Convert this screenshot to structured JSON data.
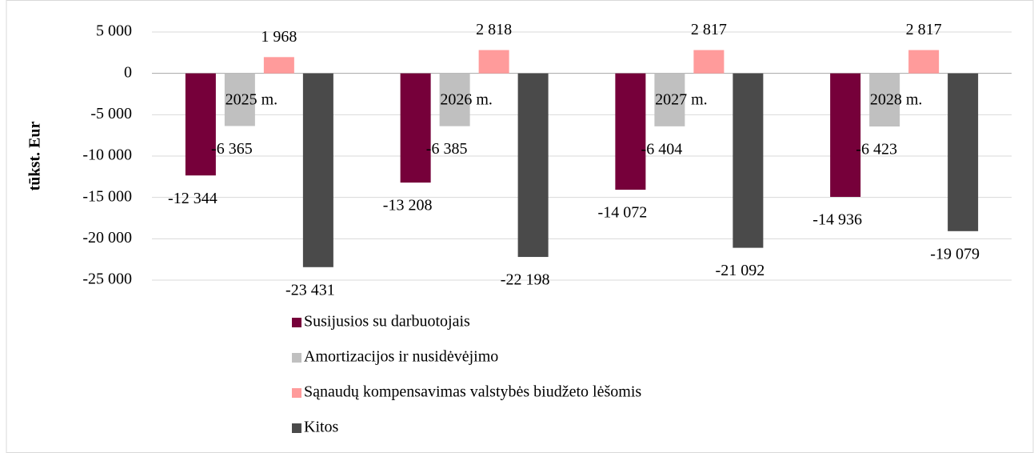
{
  "chart_data": {
    "type": "bar",
    "y_label": "tūkst. Eur",
    "categories": [
      "2025 m.",
      "2026 m.",
      "2027 m.",
      "2028 m."
    ],
    "series": [
      {
        "name": "Susijusios su darbuotojais",
        "color": "#76003a",
        "values": [
          -12344,
          -13208,
          -14072,
          -14936
        ],
        "value_labels": [
          "-12 344",
          "-13 208",
          "-14 072",
          "-14 936"
        ]
      },
      {
        "name": "Amortizacijos ir nusidėvėjimo",
        "color": "#c0c0c0",
        "values": [
          -6365,
          -6385,
          -6404,
          -6423
        ],
        "value_labels": [
          "-6 365",
          "-6 385",
          "-6 404",
          "-6 423"
        ]
      },
      {
        "name": "Sąnaudų kompensavimas valstybės biudžeto lėšomis",
        "color": "#ff9b9b",
        "values": [
          1968,
          2818,
          2817,
          2817
        ],
        "value_labels": [
          "1 968",
          "2 818",
          "2 817",
          "2 817"
        ]
      },
      {
        "name": "Kitos",
        "color": "#4a4a4a",
        "values": [
          -23431,
          -22198,
          -21092,
          -19079
        ],
        "value_labels": [
          "-23 431",
          "-22 198",
          "-21 092",
          "-19 079"
        ]
      }
    ],
    "ylim": [
      -25000,
      5000
    ],
    "yticks": [
      {
        "value": -25000,
        "label": "-25 000"
      },
      {
        "value": -20000,
        "label": "-20 000"
      },
      {
        "value": -15000,
        "label": "-15 000"
      },
      {
        "value": -10000,
        "label": "-10 000"
      },
      {
        "value": -5000,
        "label": "-5 000"
      },
      0,
      {
        "value": 5000,
        "label": "5 000"
      }
    ],
    "grid": true,
    "legend": "bottom"
  }
}
